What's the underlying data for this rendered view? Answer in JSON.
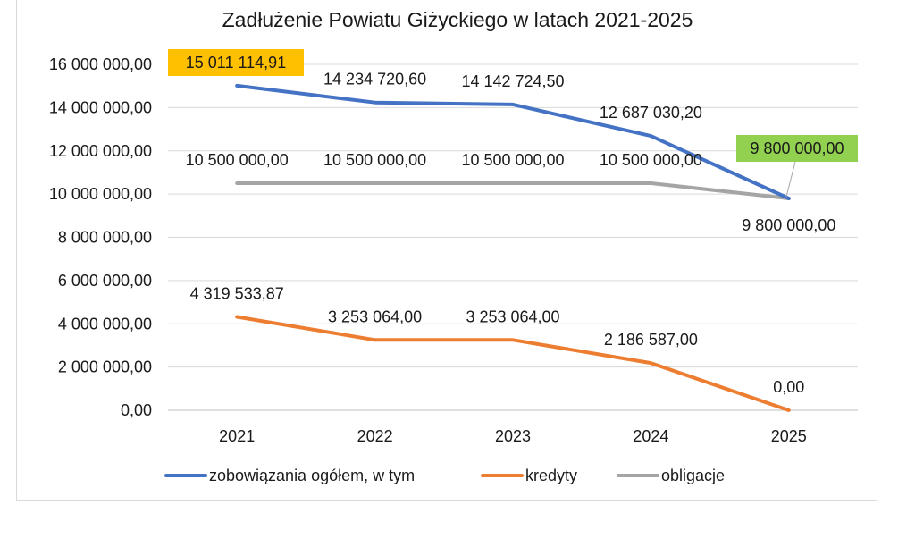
{
  "chart_data": {
    "type": "line",
    "title": "Zadłużenie Powiatu Giżyckiego w latach 2021-2025",
    "categories": [
      "2021",
      "2022",
      "2023",
      "2024",
      "2025"
    ],
    "ylim": [
      0,
      16000000
    ],
    "yticks": [
      {
        "value": 0,
        "label": "0,00"
      },
      {
        "value": 2000000,
        "label": "2 000 000,00"
      },
      {
        "value": 4000000,
        "label": "4 000 000,00"
      },
      {
        "value": 6000000,
        "label": "6 000 000,00"
      },
      {
        "value": 8000000,
        "label": "8 000 000,00"
      },
      {
        "value": 10000000,
        "label": "10 000 000,00"
      },
      {
        "value": 12000000,
        "label": "12 000 000,00"
      },
      {
        "value": 14000000,
        "label": "14 000 000,00"
      },
      {
        "value": 16000000,
        "label": "16 000 000,00"
      }
    ],
    "grid": true,
    "legend_position": "bottom",
    "series": [
      {
        "key": "zobowiazania",
        "name": "zobowiązania ogółem, w tym",
        "color": "#4472c4",
        "values": [
          15011114.91,
          14234720.6,
          14142724.5,
          12687030.2,
          9800000.0
        ],
        "labels": [
          "15 011 114,91",
          "14 234 720,60",
          "14 142 724,50",
          "12 687 030,20",
          "9 800 000,00"
        ]
      },
      {
        "key": "kredyty",
        "name": "kredyty",
        "color": "#ed7d31",
        "values": [
          4319533.87,
          3253064.0,
          3253064.0,
          2186587.0,
          0.0
        ],
        "labels": [
          "4 319 533,87",
          "3 253 064,00",
          "3 253 064,00",
          "2 186 587,00",
          "0,00"
        ]
      },
      {
        "key": "obligacje",
        "name": "obligacje",
        "color": "#a5a5a5",
        "values": [
          10500000.0,
          10500000.0,
          10500000.0,
          10500000.0,
          9800000.0
        ],
        "labels": [
          "10 500 000,00",
          "10 500 000,00",
          "10 500 000,00",
          "10 500 000,00",
          "9 800 000,00"
        ]
      }
    ],
    "highlight_colors": {
      "first_total": "#ffc000",
      "last_total": "#92d050"
    }
  }
}
